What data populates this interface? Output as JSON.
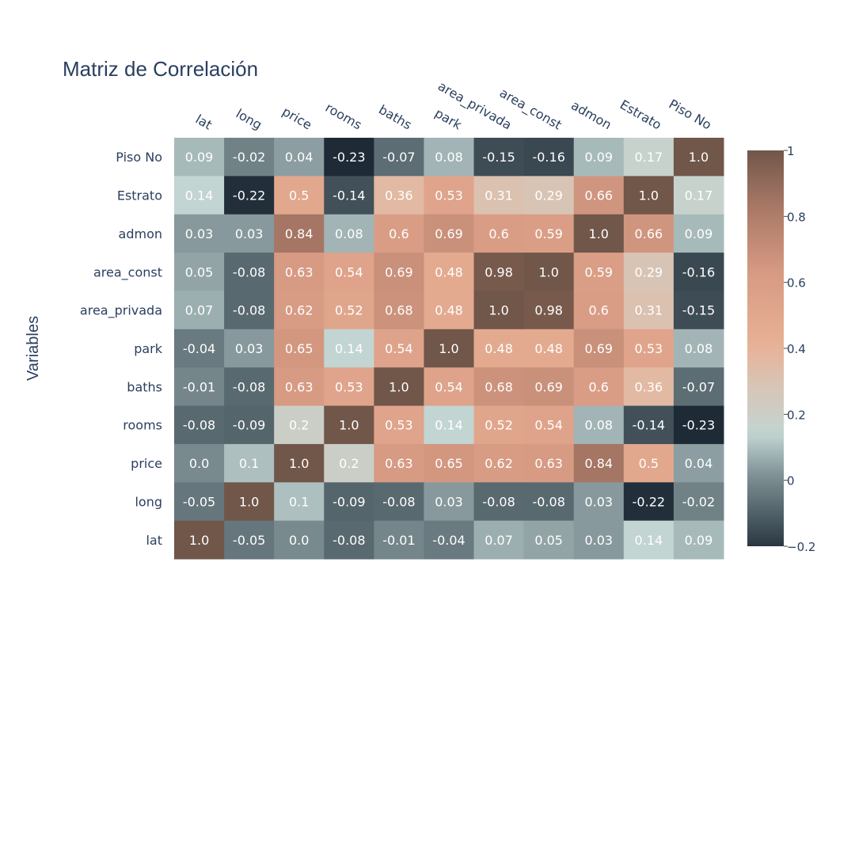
{
  "chart_data": {
    "type": "heatmap",
    "title": "Matriz de Correlación",
    "ylabel": "Variables",
    "x_categories": [
      "lat",
      "long",
      "price",
      "rooms",
      "baths",
      "park",
      "area_privada",
      "area_const",
      "admon",
      "Estrato",
      "Piso No"
    ],
    "y_categories_top_to_bottom": [
      "Piso No",
      "Estrato",
      "admon",
      "area_const",
      "area_privada",
      "park",
      "baths",
      "rooms",
      "price",
      "long",
      "lat"
    ],
    "z": [
      [
        "0.09",
        "-0.02",
        "0.04",
        "-0.23",
        "-0.07",
        "0.08",
        "-0.15",
        "-0.16",
        "0.09",
        "0.17",
        "1.0"
      ],
      [
        "0.14",
        "-0.22",
        "0.5",
        "-0.14",
        "0.36",
        "0.53",
        "0.31",
        "0.29",
        "0.66",
        "1.0",
        "0.17"
      ],
      [
        "0.03",
        "0.03",
        "0.84",
        "0.08",
        "0.6",
        "0.69",
        "0.6",
        "0.59",
        "1.0",
        "0.66",
        "0.09"
      ],
      [
        "0.05",
        "-0.08",
        "0.63",
        "0.54",
        "0.69",
        "0.48",
        "0.98",
        "1.0",
        "0.59",
        "0.29",
        "-0.16"
      ],
      [
        "0.07",
        "-0.08",
        "0.62",
        "0.52",
        "0.68",
        "0.48",
        "1.0",
        "0.98",
        "0.6",
        "0.31",
        "-0.15"
      ],
      [
        "-0.04",
        "0.03",
        "0.65",
        "0.14",
        "0.54",
        "1.0",
        "0.48",
        "0.48",
        "0.69",
        "0.53",
        "0.08"
      ],
      [
        "-0.01",
        "-0.08",
        "0.63",
        "0.53",
        "1.0",
        "0.54",
        "0.68",
        "0.69",
        "0.6",
        "0.36",
        "-0.07"
      ],
      [
        "-0.08",
        "-0.09",
        "0.2",
        "1.0",
        "0.53",
        "0.14",
        "0.52",
        "0.54",
        "0.08",
        "-0.14",
        "-0.23"
      ],
      [
        "0.0",
        "0.1",
        "1.0",
        "0.2",
        "0.63",
        "0.65",
        "0.62",
        "0.63",
        "0.84",
        "0.5",
        "0.04"
      ],
      [
        "-0.05",
        "1.0",
        "0.1",
        "-0.09",
        "-0.08",
        "0.03",
        "-0.08",
        "-0.08",
        "0.03",
        "-0.22",
        "-0.02"
      ],
      [
        "1.0",
        "-0.05",
        "0.0",
        "-0.08",
        "-0.01",
        "-0.04",
        "0.07",
        "0.05",
        "0.03",
        "0.14",
        "0.09"
      ]
    ],
    "zmin": -0.23,
    "zmax": 1.0,
    "colorscale": [
      [
        0.0,
        "#1e2b37"
      ],
      [
        0.2,
        "#7f9195"
      ],
      [
        0.3,
        "#c2d5d3"
      ],
      [
        0.42,
        "#d8c5b6"
      ],
      [
        0.52,
        "#e8b195"
      ],
      [
        0.7,
        "#d79a83"
      ],
      [
        0.86,
        "#a97866"
      ],
      [
        1.0,
        "#71564a"
      ]
    ],
    "colorbar": {
      "ticks": [
        {
          "value": 1,
          "label": "1"
        },
        {
          "value": 0.8,
          "label": "0.8"
        },
        {
          "value": 0.6,
          "label": "0.6"
        },
        {
          "value": 0.4,
          "label": "0.4"
        },
        {
          "value": 0.2,
          "label": "0.2"
        },
        {
          "value": 0,
          "label": "0"
        },
        {
          "value": -0.2,
          "label": "−0.2"
        }
      ]
    }
  }
}
